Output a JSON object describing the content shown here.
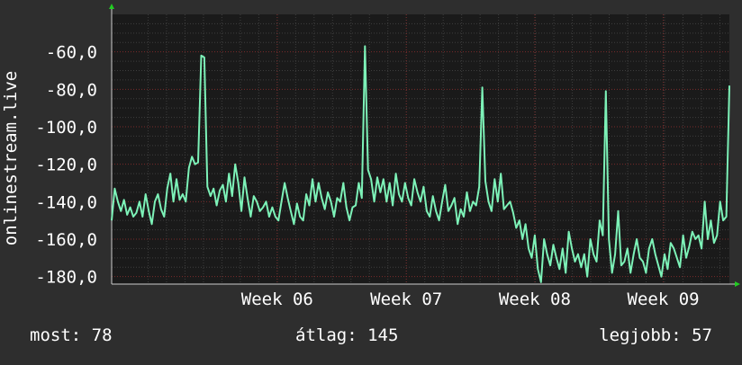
{
  "colors": {
    "background": "#2e2e2e",
    "plot_background": "#1a1a1a",
    "grid_major": "#7a2b2b",
    "grid_minor": "#3e3e3e",
    "line": "#7df2b8",
    "axis_arrow": "#22cc22",
    "text": "#ffffff"
  },
  "footer": {
    "now": "most: 78",
    "avg": "átlag: 145",
    "best": "legjobb: 57"
  },
  "chart_data": {
    "type": "line",
    "ylabel": "onlinestream.live",
    "ylim": [
      -184,
      -40
    ],
    "yticks": [
      -60,
      -80,
      -100,
      -120,
      -140,
      -160,
      -180
    ],
    "ytick_labels": [
      "-60,0",
      "-80,0",
      "-100,0",
      "-120,0",
      "-140,0",
      "-160,0",
      "-180,0"
    ],
    "xlim": [
      0,
      100
    ],
    "xticks": [
      {
        "x": 26.8,
        "label": "Week 06"
      },
      {
        "x": 47.7,
        "label": "Week 07"
      },
      {
        "x": 68.5,
        "label": "Week 08"
      },
      {
        "x": 89.3,
        "label": "Week 09"
      }
    ],
    "grid": true,
    "series": [
      {
        "values": [
          [
            0.0,
            -150
          ],
          [
            0.5,
            -133
          ],
          [
            1.0,
            -140
          ],
          [
            1.5,
            -145
          ],
          [
            2.0,
            -139
          ],
          [
            2.5,
            -147
          ],
          [
            3.0,
            -143
          ],
          [
            3.5,
            -148
          ],
          [
            4.0,
            -146
          ],
          [
            4.5,
            -140
          ],
          [
            5.0,
            -148
          ],
          [
            5.5,
            -136
          ],
          [
            6.0,
            -145
          ],
          [
            6.5,
            -152
          ],
          [
            7.0,
            -140
          ],
          [
            7.5,
            -136
          ],
          [
            8.0,
            -144
          ],
          [
            8.5,
            -148
          ],
          [
            9.0,
            -133
          ],
          [
            9.5,
            -125
          ],
          [
            10.0,
            -140
          ],
          [
            10.5,
            -128
          ],
          [
            11.0,
            -139
          ],
          [
            11.5,
            -136
          ],
          [
            12.0,
            -140
          ],
          [
            12.5,
            -122
          ],
          [
            13.0,
            -116
          ],
          [
            13.5,
            -120
          ],
          [
            14.0,
            -119
          ],
          [
            14.5,
            -62
          ],
          [
            15.0,
            -63
          ],
          [
            15.5,
            -132
          ],
          [
            16.0,
            -137
          ],
          [
            16.5,
            -133
          ],
          [
            17.0,
            -142
          ],
          [
            17.5,
            -134
          ],
          [
            18.0,
            -131
          ],
          [
            18.5,
            -140
          ],
          [
            19.0,
            -125
          ],
          [
            19.5,
            -137
          ],
          [
            20.0,
            -120
          ],
          [
            20.5,
            -130
          ],
          [
            21.0,
            -145
          ],
          [
            21.5,
            -127
          ],
          [
            22.0,
            -138
          ],
          [
            22.5,
            -148
          ],
          [
            23.0,
            -137
          ],
          [
            23.5,
            -140
          ],
          [
            24.0,
            -145
          ],
          [
            24.5,
            -143
          ],
          [
            25.0,
            -140
          ],
          [
            25.5,
            -148
          ],
          [
            26.0,
            -143
          ],
          [
            26.5,
            -148
          ],
          [
            27.0,
            -150
          ],
          [
            27.5,
            -140
          ],
          [
            28.0,
            -130
          ],
          [
            28.5,
            -138
          ],
          [
            29.0,
            -145
          ],
          [
            29.5,
            -152
          ],
          [
            30.0,
            -141
          ],
          [
            30.5,
            -148
          ],
          [
            31.0,
            -150
          ],
          [
            31.5,
            -136
          ],
          [
            32.0,
            -142
          ],
          [
            32.5,
            -128
          ],
          [
            33.0,
            -140
          ],
          [
            33.5,
            -130
          ],
          [
            34.0,
            -138
          ],
          [
            34.5,
            -144
          ],
          [
            35.0,
            -135
          ],
          [
            35.5,
            -140
          ],
          [
            36.0,
            -148
          ],
          [
            36.5,
            -138
          ],
          [
            37.0,
            -140
          ],
          [
            37.5,
            -130
          ],
          [
            38.0,
            -143
          ],
          [
            38.5,
            -150
          ],
          [
            39.0,
            -143
          ],
          [
            39.5,
            -142
          ],
          [
            40.0,
            -130
          ],
          [
            40.5,
            -138
          ],
          [
            41.0,
            -57
          ],
          [
            41.5,
            -123
          ],
          [
            42.0,
            -128
          ],
          [
            42.5,
            -140
          ],
          [
            43.0,
            -127
          ],
          [
            43.5,
            -135
          ],
          [
            44.0,
            -128
          ],
          [
            44.5,
            -140
          ],
          [
            45.0,
            -130
          ],
          [
            45.5,
            -142
          ],
          [
            46.0,
            -125
          ],
          [
            46.5,
            -136
          ],
          [
            47.0,
            -140
          ],
          [
            47.5,
            -130
          ],
          [
            48.0,
            -138
          ],
          [
            48.5,
            -142
          ],
          [
            49.0,
            -128
          ],
          [
            49.5,
            -135
          ],
          [
            50.0,
            -140
          ],
          [
            50.5,
            -132
          ],
          [
            51.0,
            -145
          ],
          [
            51.5,
            -148
          ],
          [
            52.0,
            -137
          ],
          [
            52.5,
            -145
          ],
          [
            53.0,
            -150
          ],
          [
            53.5,
            -140
          ],
          [
            54.0,
            -131
          ],
          [
            54.5,
            -145
          ],
          [
            55.0,
            -142
          ],
          [
            55.5,
            -138
          ],
          [
            56.0,
            -152
          ],
          [
            56.5,
            -144
          ],
          [
            57.0,
            -148
          ],
          [
            57.5,
            -135
          ],
          [
            58.0,
            -145
          ],
          [
            58.5,
            -140
          ],
          [
            59.0,
            -142
          ],
          [
            59.5,
            -132
          ],
          [
            60.0,
            -79
          ],
          [
            60.5,
            -129
          ],
          [
            61.0,
            -140
          ],
          [
            61.5,
            -145
          ],
          [
            62.0,
            -128
          ],
          [
            62.5,
            -140
          ],
          [
            63.0,
            -125
          ],
          [
            63.5,
            -144
          ],
          [
            64.0,
            -142
          ],
          [
            64.5,
            -140
          ],
          [
            65.0,
            -146
          ],
          [
            65.5,
            -154
          ],
          [
            66.0,
            -150
          ],
          [
            66.5,
            -160
          ],
          [
            67.0,
            -152
          ],
          [
            67.5,
            -165
          ],
          [
            68.0,
            -170
          ],
          [
            68.5,
            -158
          ],
          [
            69.0,
            -176
          ],
          [
            69.5,
            -183
          ],
          [
            70.0,
            -160
          ],
          [
            70.5,
            -168
          ],
          [
            71.0,
            -174
          ],
          [
            71.5,
            -163
          ],
          [
            72.0,
            -170
          ],
          [
            72.5,
            -176
          ],
          [
            73.0,
            -165
          ],
          [
            73.5,
            -178
          ],
          [
            74.0,
            -156
          ],
          [
            74.5,
            -165
          ],
          [
            75.0,
            -172
          ],
          [
            75.5,
            -168
          ],
          [
            76.0,
            -175
          ],
          [
            76.5,
            -168
          ],
          [
            77.0,
            -180
          ],
          [
            77.5,
            -160
          ],
          [
            78.0,
            -168
          ],
          [
            78.5,
            -172
          ],
          [
            79.0,
            -150
          ],
          [
            79.5,
            -158
          ],
          [
            80.0,
            -81
          ],
          [
            80.5,
            -160
          ],
          [
            81.0,
            -178
          ],
          [
            81.5,
            -168
          ],
          [
            82.0,
            -145
          ],
          [
            82.5,
            -174
          ],
          [
            83.0,
            -172
          ],
          [
            83.5,
            -165
          ],
          [
            84.0,
            -178
          ],
          [
            84.5,
            -168
          ],
          [
            85.0,
            -160
          ],
          [
            85.5,
            -170
          ],
          [
            86.0,
            -172
          ],
          [
            86.5,
            -178
          ],
          [
            87.0,
            -165
          ],
          [
            87.5,
            -160
          ],
          [
            88.0,
            -168
          ],
          [
            88.5,
            -174
          ],
          [
            89.0,
            -180
          ],
          [
            89.5,
            -168
          ],
          [
            90.0,
            -176
          ],
          [
            90.5,
            -162
          ],
          [
            91.0,
            -165
          ],
          [
            91.5,
            -170
          ],
          [
            92.0,
            -175
          ],
          [
            92.5,
            -158
          ],
          [
            93.0,
            -170
          ],
          [
            93.5,
            -164
          ],
          [
            94.0,
            -156
          ],
          [
            94.5,
            -160
          ],
          [
            95.0,
            -158
          ],
          [
            95.5,
            -165
          ],
          [
            96.0,
            -140
          ],
          [
            96.5,
            -160
          ],
          [
            97.0,
            -150
          ],
          [
            97.5,
            -162
          ],
          [
            98.0,
            -158
          ],
          [
            98.5,
            -140
          ],
          [
            99.0,
            -150
          ],
          [
            99.5,
            -148
          ],
          [
            100.0,
            -78
          ]
        ]
      }
    ]
  }
}
